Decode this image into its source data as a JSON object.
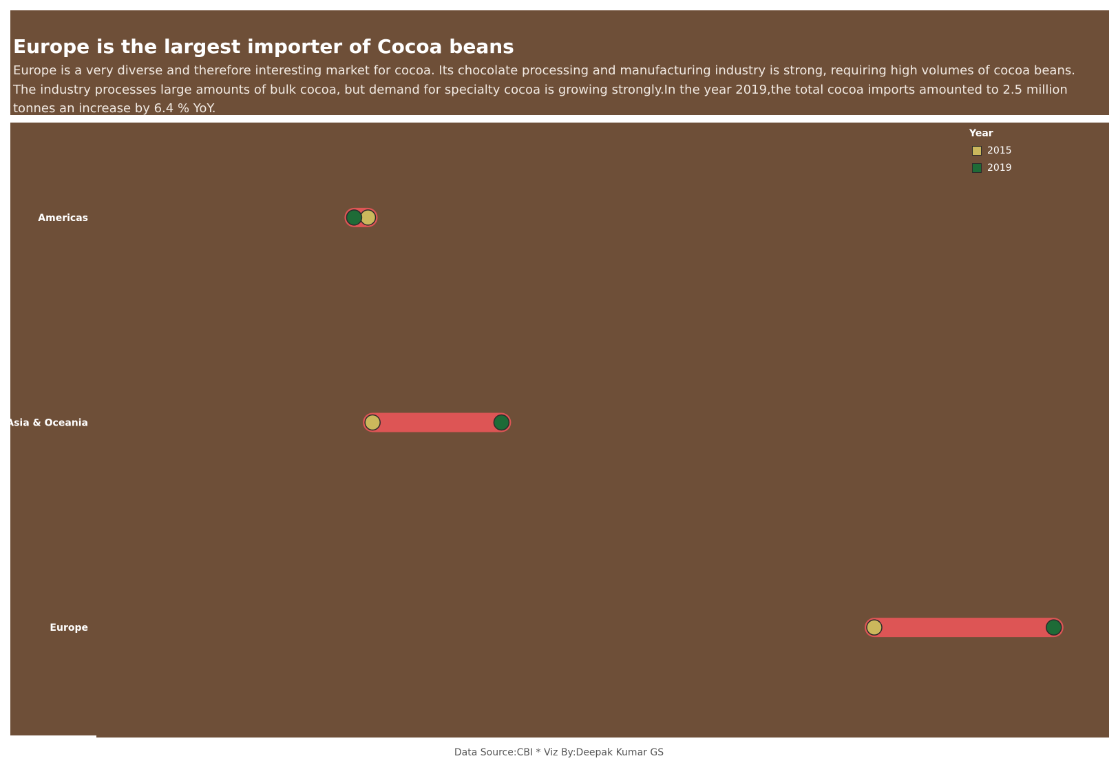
{
  "header": {
    "title": "Europe is the largest importer of Cocoa beans",
    "subtitle": "Europe is a very diverse and therefore interesting market for cocoa. Its chocolate processing and manufacturing industry is strong, requiring high volumes of cocoa beans. The industry processes large amounts of bulk cocoa, but demand for specialty cocoa is growing strongly.In the year 2019,the total cocoa imports amounted to 2.5 million tonnes an increase by 6.4 % YoY."
  },
  "legend": {
    "title": "Year",
    "items": [
      {
        "label": "2015",
        "color": "#cbb85c"
      },
      {
        "label": "2019",
        "color": "#1e6b37"
      }
    ]
  },
  "colors": {
    "background": "#6e4f38",
    "connector": "#dd5555",
    "marker_2015": "#cbb85c",
    "marker_2019": "#1e6b37"
  },
  "chart_data": {
    "type": "dumbbell",
    "categories": [
      "Americas",
      "Asia & Oceania",
      "Europe"
    ],
    "series": [
      {
        "name": "2015",
        "values": [
          0.1,
          0.11,
          1.2
        ]
      },
      {
        "name": "2019",
        "values": [
          0.07,
          0.39,
          1.59
        ]
      }
    ],
    "xlim": [
      -0.49,
      1.71
    ],
    "grid": false,
    "legend_position": "top-right"
  },
  "footer": {
    "text": "Data Source:CBI * Viz By:Deepak Kumar GS"
  }
}
